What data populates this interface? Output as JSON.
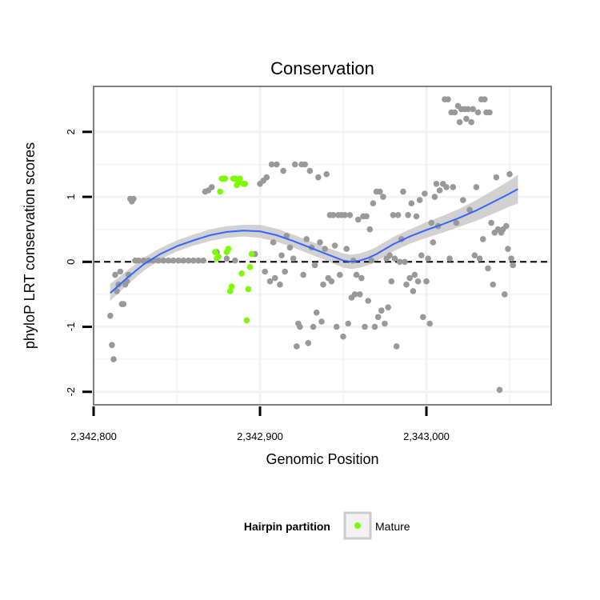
{
  "chart_data": {
    "type": "scatter",
    "title": "Conservation",
    "xlabel": "Genomic Position",
    "ylabel": "phyloP LRT conservation scores",
    "xlim": [
      2342800,
      2343075
    ],
    "ylim": [
      -2.2,
      2.7
    ],
    "x_ticks": [
      2342800,
      2342900,
      2343000
    ],
    "x_tick_labels": [
      "2,342,800",
      "2,342,900",
      "2,343,000"
    ],
    "y_ticks": [
      -2,
      -1,
      0,
      1,
      2
    ],
    "y_tick_labels": [
      "-2",
      "-1",
      "0",
      "1",
      "2"
    ],
    "grid": true,
    "reference_line": {
      "y": 0,
      "style": "dashed"
    },
    "colors": {
      "other": "#999999",
      "mature": "#7CFC00",
      "smooth": "#3366FF",
      "ribbon": "#cccccc",
      "panel_border": "#808080",
      "gridline": "#f2f2f2"
    },
    "legend": {
      "title": "Hairpin partition",
      "position": "bottom",
      "entries": [
        {
          "label": "Mature",
          "color": "#7CFC00"
        }
      ]
    },
    "series": [
      {
        "group": "other",
        "points": [
          [
            2342810,
            -0.83
          ],
          [
            2342811,
            -1.28
          ],
          [
            2342812,
            -1.5
          ],
          [
            2342813,
            -0.2
          ],
          [
            2342814,
            -0.45
          ],
          [
            2342815,
            -0.35
          ],
          [
            2342816,
            -0.15
          ],
          [
            2342817,
            -0.65
          ],
          [
            2342818,
            -0.65
          ],
          [
            2342819,
            -0.35
          ],
          [
            2342820,
            -0.3
          ],
          [
            2342821,
            -0.2
          ],
          [
            2342822,
            0.97
          ],
          [
            2342823,
            0.93
          ],
          [
            2342824,
            0.97
          ],
          [
            2342825,
            0.02
          ],
          [
            2342827,
            0.02
          ],
          [
            2342830,
            0.02
          ],
          [
            2342833,
            0.02
          ],
          [
            2342836,
            0.02
          ],
          [
            2342839,
            0.02
          ],
          [
            2342842,
            0.02
          ],
          [
            2342845,
            0.02
          ],
          [
            2342848,
            0.02
          ],
          [
            2342851,
            0.02
          ],
          [
            2342854,
            0.02
          ],
          [
            2342857,
            0.02
          ],
          [
            2342860,
            0.02
          ],
          [
            2342863,
            0.02
          ],
          [
            2342866,
            0.02
          ],
          [
            2342867,
            1.08
          ],
          [
            2342869,
            1.1
          ],
          [
            2342871,
            1.15
          ],
          [
            2342874,
            0.15
          ],
          [
            2342880,
            0.05
          ],
          [
            2342885,
            0.02
          ],
          [
            2342897,
            0.12
          ],
          [
            2342900,
            1.2
          ],
          [
            2342902,
            1.25
          ],
          [
            2342903,
            -0.15
          ],
          [
            2342904,
            1.3
          ],
          [
            2342906,
            -0.3
          ],
          [
            2342907,
            1.5
          ],
          [
            2342908,
            0.3
          ],
          [
            2342909,
            -0.25
          ],
          [
            2342910,
            1.5
          ],
          [
            2342912,
            -0.35
          ],
          [
            2342913,
            0.1
          ],
          [
            2342914,
            1.4
          ],
          [
            2342915,
            -0.15
          ],
          [
            2342916,
            0.4
          ],
          [
            2342918,
            0.22
          ],
          [
            2342920,
            0.05
          ],
          [
            2342921,
            1.5
          ],
          [
            2342922,
            -1.3
          ],
          [
            2342923,
            -0.95
          ],
          [
            2342924,
            -1.0
          ],
          [
            2342925,
            1.5
          ],
          [
            2342926,
            -0.2
          ],
          [
            2342927,
            1.5
          ],
          [
            2342928,
            0.35
          ],
          [
            2342929,
            -1.25
          ],
          [
            2342930,
            1.4
          ],
          [
            2342931,
            0.22
          ],
          [
            2342932,
            -1.0
          ],
          [
            2342933,
            -0.05
          ],
          [
            2342934,
            -0.78
          ],
          [
            2342935,
            1.3
          ],
          [
            2342936,
            0.3
          ],
          [
            2342937,
            -0.92
          ],
          [
            2342938,
            -0.35
          ],
          [
            2342939,
            0.2
          ],
          [
            2342940,
            1.35
          ],
          [
            2342941,
            -0.25
          ],
          [
            2342942,
            0.72
          ],
          [
            2342943,
            -0.3
          ],
          [
            2342944,
            0.72
          ],
          [
            2342945,
            0.25
          ],
          [
            2342946,
            -1.0
          ],
          [
            2342947,
            0.72
          ],
          [
            2342948,
            -0.2
          ],
          [
            2342949,
            0.72
          ],
          [
            2342950,
            -1.15
          ],
          [
            2342951,
            0.72
          ],
          [
            2342952,
            0.2
          ],
          [
            2342953,
            -0.95
          ],
          [
            2342954,
            0.72
          ],
          [
            2342955,
            -0.55
          ],
          [
            2342956,
            0.02
          ],
          [
            2342957,
            -0.5
          ],
          [
            2342958,
            -0.2
          ],
          [
            2342959,
            0.65
          ],
          [
            2342960,
            -0.5
          ],
          [
            2342961,
            -0.25
          ],
          [
            2342962,
            0.7
          ],
          [
            2342963,
            -1.0
          ],
          [
            2342964,
            0.7
          ],
          [
            2342965,
            -0.6
          ],
          [
            2342966,
            0.5
          ],
          [
            2342967,
            0.02
          ],
          [
            2342968,
            0.9
          ],
          [
            2342969,
            -1.0
          ],
          [
            2342970,
            1.08
          ],
          [
            2342971,
            -0.85
          ],
          [
            2342972,
            1.08
          ],
          [
            2342973,
            -0.75
          ],
          [
            2342974,
            1.0
          ],
          [
            2342975,
            -0.95
          ],
          [
            2342976,
            0.05
          ],
          [
            2342977,
            -0.7
          ],
          [
            2342978,
            0.1
          ],
          [
            2342979,
            -0.3
          ],
          [
            2342980,
            0.72
          ],
          [
            2342981,
            0.05
          ],
          [
            2342982,
            -1.3
          ],
          [
            2342983,
            0.72
          ],
          [
            2342984,
            0.0
          ],
          [
            2342985,
            0.35
          ],
          [
            2342986,
            1.08
          ],
          [
            2342987,
            0.0
          ],
          [
            2342988,
            -0.35
          ],
          [
            2342989,
            0.72
          ],
          [
            2342990,
            -0.25
          ],
          [
            2342991,
            0.9
          ],
          [
            2342992,
            -0.45
          ],
          [
            2342993,
            -0.2
          ],
          [
            2342994,
            0.7
          ],
          [
            2342995,
            -0.3
          ],
          [
            2342996,
            0.95
          ],
          [
            2342997,
            0.1
          ],
          [
            2342998,
            -0.85
          ],
          [
            2342999,
            1.05
          ],
          [
            2343000,
            -0.3
          ],
          [
            2343001,
            0.05
          ],
          [
            2343002,
            -0.95
          ],
          [
            2343003,
            0.6
          ],
          [
            2343004,
            0.3
          ],
          [
            2343005,
            1.0
          ],
          [
            2343006,
            1.2
          ],
          [
            2343007,
            0.55
          ],
          [
            2343008,
            1.1
          ],
          [
            2343010,
            1.2
          ],
          [
            2343011,
            2.5
          ],
          [
            2343012,
            1.15
          ],
          [
            2343013,
            2.5
          ],
          [
            2343014,
            0.05
          ],
          [
            2343015,
            2.3
          ],
          [
            2343016,
            1.15
          ],
          [
            2343017,
            2.3
          ],
          [
            2343018,
            0.6
          ],
          [
            2343019,
            2.4
          ],
          [
            2343020,
            2.15
          ],
          [
            2343021,
            2.35
          ],
          [
            2343022,
            0.95
          ],
          [
            2343023,
            2.35
          ],
          [
            2343024,
            2.2
          ],
          [
            2343025,
            2.35
          ],
          [
            2343026,
            0.8
          ],
          [
            2343027,
            2.15
          ],
          [
            2343028,
            2.35
          ],
          [
            2343029,
            0.1
          ],
          [
            2343030,
            1.15
          ],
          [
            2343031,
            2.3
          ],
          [
            2343032,
            0.05
          ],
          [
            2343033,
            2.5
          ],
          [
            2343034,
            0.35
          ],
          [
            2343035,
            2.5
          ],
          [
            2343036,
            2.3
          ],
          [
            2343037,
            -0.1
          ],
          [
            2343038,
            2.3
          ],
          [
            2343039,
            0.6
          ],
          [
            2343040,
            -0.35
          ],
          [
            2343041,
            0.45
          ],
          [
            2343042,
            1.3
          ],
          [
            2343043,
            0.5
          ],
          [
            2343044,
            -1.97
          ],
          [
            2343045,
            0.45
          ],
          [
            2343046,
            0.5
          ],
          [
            2343047,
            -0.5
          ],
          [
            2343048,
            0.55
          ],
          [
            2343049,
            0.2
          ],
          [
            2343050,
            1.35
          ],
          [
            2343051,
            0.05
          ],
          [
            2343052,
            -0.05
          ]
        ]
      },
      {
        "group": "Mature",
        "name": "Mature",
        "points": [
          [
            2342873,
            0.15
          ],
          [
            2342874,
            0.05
          ],
          [
            2342875,
            0.08
          ],
          [
            2342876,
            1.08
          ],
          [
            2342877,
            1.28
          ],
          [
            2342878,
            1.28
          ],
          [
            2342879,
            1.28
          ],
          [
            2342880,
            0.15
          ],
          [
            2342881,
            0.2
          ],
          [
            2342882,
            -0.45
          ],
          [
            2342883,
            -0.38
          ],
          [
            2342884,
            1.28
          ],
          [
            2342885,
            1.28
          ],
          [
            2342886,
            1.18
          ],
          [
            2342887,
            1.22
          ],
          [
            2342888,
            1.28
          ],
          [
            2342889,
            -0.18
          ],
          [
            2342890,
            1.2
          ],
          [
            2342891,
            1.2
          ],
          [
            2342892,
            -0.9
          ],
          [
            2342893,
            -0.42
          ],
          [
            2342894,
            -0.08
          ],
          [
            2342895,
            0.12
          ]
        ]
      }
    ],
    "smooth": {
      "x": [
        2342810,
        2342820,
        2342830,
        2342840,
        2342850,
        2342860,
        2342870,
        2342880,
        2342890,
        2342900,
        2342910,
        2342920,
        2342930,
        2342940,
        2342950,
        2342955,
        2342960,
        2342965,
        2342970,
        2342980,
        2342990,
        2343000,
        2343010,
        2343020,
        2343030,
        2343040,
        2343050,
        2343055
      ],
      "y": [
        -0.48,
        -0.25,
        -0.04,
        0.12,
        0.24,
        0.33,
        0.41,
        0.46,
        0.48,
        0.47,
        0.41,
        0.32,
        0.22,
        0.12,
        0.02,
        0.0,
        0.02,
        0.06,
        0.12,
        0.27,
        0.39,
        0.49,
        0.58,
        0.68,
        0.79,
        0.92,
        1.05,
        1.12
      ],
      "lower": [
        -0.6,
        -0.36,
        -0.14,
        0.04,
        0.16,
        0.25,
        0.32,
        0.37,
        0.39,
        0.37,
        0.31,
        0.22,
        0.12,
        0.02,
        -0.09,
        -0.11,
        -0.09,
        -0.05,
        0.01,
        0.16,
        0.28,
        0.37,
        0.45,
        0.54,
        0.63,
        0.74,
        0.85,
        0.9
      ],
      "upper": [
        -0.34,
        -0.14,
        0.06,
        0.21,
        0.33,
        0.42,
        0.5,
        0.55,
        0.57,
        0.57,
        0.51,
        0.42,
        0.32,
        0.22,
        0.13,
        0.11,
        0.13,
        0.17,
        0.23,
        0.38,
        0.5,
        0.61,
        0.71,
        0.82,
        0.95,
        1.1,
        1.25,
        1.34
      ]
    }
  }
}
